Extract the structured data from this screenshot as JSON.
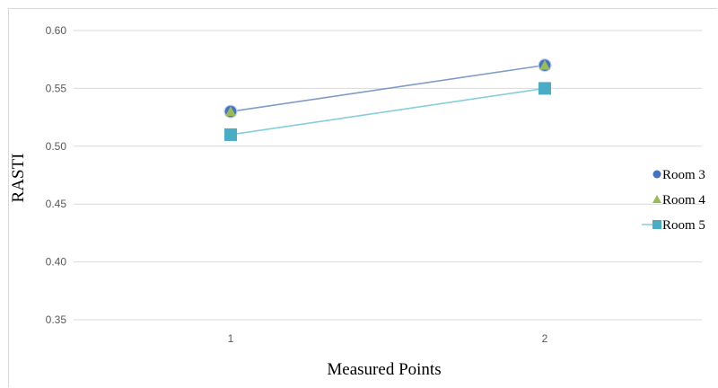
{
  "chart_data": {
    "type": "line",
    "title": "",
    "xlabel": "Measured Points",
    "ylabel": "RASTI",
    "x": [
      "1",
      "2"
    ],
    "ylim": [
      0.35,
      0.6
    ],
    "yticks": [
      "0.35",
      "0.40",
      "0.45",
      "0.50",
      "0.55",
      "0.60"
    ],
    "grid": true,
    "legend_position": "right",
    "series": [
      {
        "name": "Room 3",
        "values": [
          0.53,
          0.57
        ],
        "color": "#4472c4",
        "marker": "circle",
        "line_color": "#7f9cc9"
      },
      {
        "name": "Room 4",
        "values": [
          0.53,
          0.57
        ],
        "color": "#9bbb59",
        "marker": "triangle",
        "line_color": null
      },
      {
        "name": "Room 5",
        "values": [
          0.51,
          0.55
        ],
        "color": "#4bacc6",
        "marker": "square",
        "line_color": "#86cddd"
      }
    ]
  }
}
